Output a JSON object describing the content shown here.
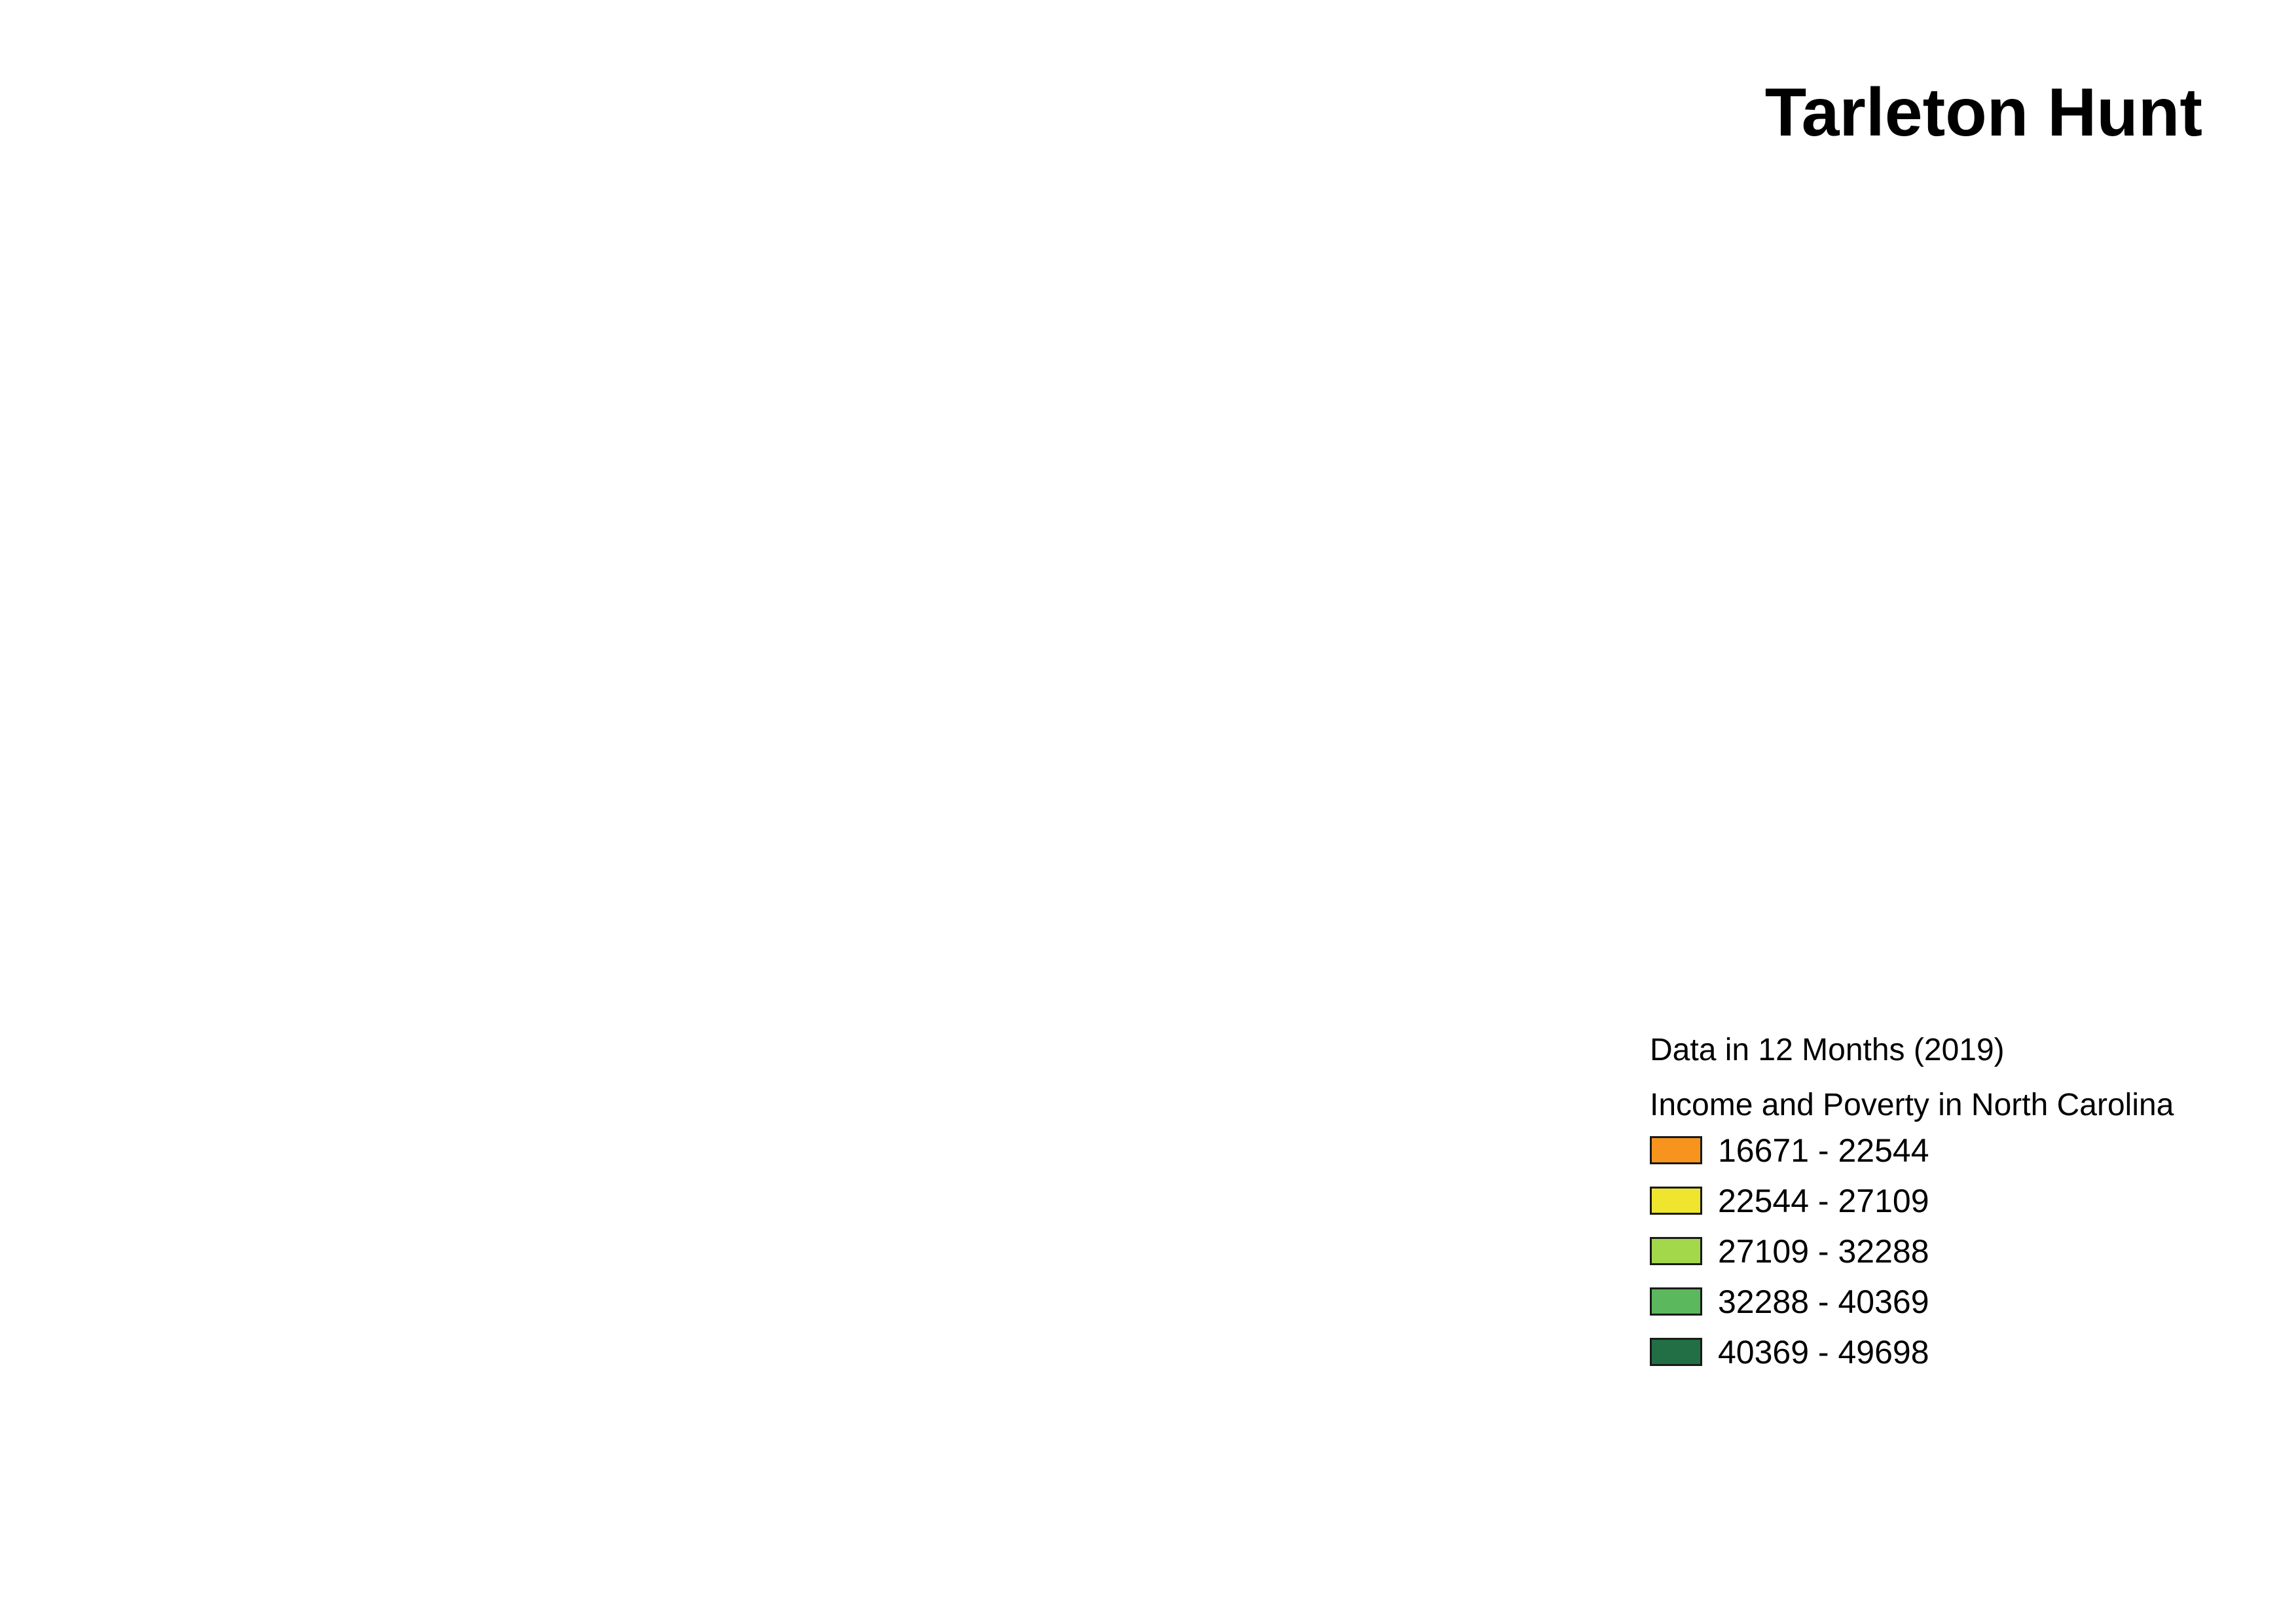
{
  "map": {
    "title": "Tarleton Hunt"
  },
  "legend": {
    "subtitle": "Data in 12 Months (2019)",
    "title": "Income and Poverty in North Carolina",
    "items": [
      {
        "label": "16671 - 22544",
        "color": "#f7941d"
      },
      {
        "label": "22544 - 27109",
        "color": "#f0e52e"
      },
      {
        "label": "27109 - 32288",
        "color": "#a3d84a"
      },
      {
        "label": "32288 - 40369",
        "color": "#5cb85c"
      },
      {
        "label": "40369 - 49698",
        "color": "#226e45"
      }
    ]
  }
}
